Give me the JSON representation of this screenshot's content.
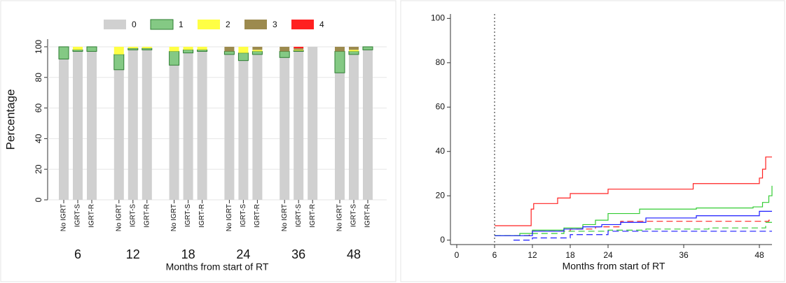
{
  "chart_data": [
    {
      "type": "bar",
      "stacked": true,
      "ylabel": "Percentage",
      "xlabel": "Months from start of RT",
      "groups": [
        "6",
        "12",
        "18",
        "24",
        "36",
        "48"
      ],
      "categories": [
        "No IGRT",
        "IGRT-S",
        "IGRT-R",
        "No IGRT",
        "IGRT-S",
        "IGRT-R",
        "No IGRT",
        "IGRT-S",
        "IGRT-R",
        "No IGRT",
        "IGRT-S",
        "IGRT-R",
        "No IGRT",
        "IGRT-S",
        "IGRT-R",
        "No IGRT",
        "IGRT-S",
        "IGRT-R"
      ],
      "ylim": [
        0,
        105
      ],
      "yticks": [
        0,
        20,
        40,
        60,
        80,
        100
      ],
      "grid": true,
      "series": [
        {
          "name": "0",
          "color": "#d0d0d0",
          "values": [
            92,
            97,
            97,
            85,
            98,
            98,
            88,
            96,
            97,
            95,
            91,
            95,
            93,
            97,
            100,
            83,
            95,
            98
          ]
        },
        {
          "name": "1",
          "color": "#84c984",
          "edgecolor": "#2e7d32",
          "values": [
            8,
            1,
            3,
            10,
            1,
            1,
            9,
            2,
            1,
            2,
            5,
            2,
            4,
            0.5,
            0,
            14,
            2,
            2
          ]
        },
        {
          "name": "2",
          "color": "#ffff44",
          "values": [
            0,
            2,
            0,
            5,
            1,
            1,
            3,
            2,
            2,
            0,
            4,
            1,
            0,
            0.5,
            0,
            0,
            1,
            0
          ]
        },
        {
          "name": "3",
          "color": "#9c8a4e",
          "values": [
            0,
            0,
            0,
            0,
            0,
            0,
            0,
            0,
            0,
            3,
            0,
            2,
            3,
            1,
            0,
            3,
            2,
            0
          ]
        },
        {
          "name": "4",
          "color": "#ff2020",
          "values": [
            0,
            0,
            0,
            0,
            0,
            0,
            0,
            0,
            0,
            0,
            0,
            0,
            0,
            1,
            0,
            0,
            0,
            0
          ]
        }
      ]
    },
    {
      "type": "line",
      "step": "post",
      "xlabel": "Months from start of RT",
      "xlim": [
        -1,
        51
      ],
      "xticks": [
        0,
        6,
        12,
        18,
        24,
        36,
        48
      ],
      "ylim": [
        -2,
        102
      ],
      "yticks": [
        0,
        20,
        40,
        60,
        80,
        100
      ],
      "vline": 6,
      "series": [
        {
          "color": "#ff2020",
          "dashed": false,
          "x": [
            6,
            11.8,
            12.2,
            16,
            18,
            24,
            37.5,
            48,
            48.5,
            49,
            50
          ],
          "values": [
            6.5,
            14,
            16.5,
            19,
            21,
            23,
            25.5,
            28,
            32,
            37.5,
            37.5
          ]
        },
        {
          "color": "#ff2020",
          "dashed": true,
          "x": [
            6,
            11.5,
            12,
            18,
            22,
            26,
            49.5,
            50
          ],
          "values": [
            2,
            3,
            4,
            5,
            6,
            8.5,
            9,
            9
          ]
        },
        {
          "color": "#33cc33",
          "dashed": false,
          "x": [
            6,
            10,
            12,
            17,
            20,
            22,
            24,
            29,
            38,
            47,
            48.5,
            49.5,
            50
          ],
          "values": [
            2,
            3,
            4.5,
            5.5,
            7,
            9,
            12,
            14,
            14.5,
            15,
            17,
            20,
            24.5
          ]
        },
        {
          "color": "#33cc33",
          "dashed": true,
          "x": [
            6,
            12,
            17,
            24,
            30,
            37,
            40,
            49,
            50
          ],
          "values": [
            2,
            3,
            4,
            4.5,
            5,
            5,
            5.5,
            8,
            8
          ]
        },
        {
          "color": "#1a1aff",
          "dashed": false,
          "x": [
            6,
            12,
            17,
            20,
            23,
            26,
            30,
            38,
            48,
            50
          ],
          "values": [
            2,
            4,
            5,
            6,
            7,
            8,
            10,
            11,
            13,
            13
          ]
        },
        {
          "color": "#1a1aff",
          "dashed": true,
          "x": [
            9,
            12,
            18,
            24,
            50
          ],
          "values": [
            0,
            1,
            2.5,
            4,
            4
          ]
        }
      ]
    }
  ]
}
